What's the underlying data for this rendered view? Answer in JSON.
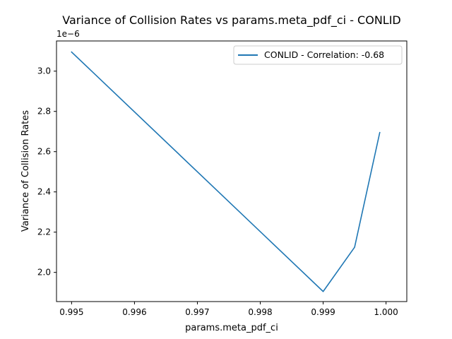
{
  "chart_data": {
    "type": "line",
    "title": "Variance of Collision Rates vs params.meta_pdf_ci - CONLID",
    "xlabel": "params.meta_pdf_ci",
    "ylabel": "Variance of Collision Rates",
    "y_offset_label": "1e−6",
    "x_ticks": [
      "0.995",
      "0.996",
      "0.997",
      "0.998",
      "0.999",
      "1.000"
    ],
    "y_ticks": [
      "2.0",
      "2.2",
      "2.4",
      "2.6",
      "2.8",
      "3.0"
    ],
    "xlim": [
      0.99476,
      1.00033
    ],
    "ylim": [
      1.855e-06,
      3.15e-06
    ],
    "grid": false,
    "legend_position": "top-right",
    "series": [
      {
        "name": "CONLID - Correlation: -0.68",
        "color": "#1f77b4",
        "x": [
          0.995,
          0.999,
          0.9995,
          0.9999
        ],
        "y": [
          3.095e-06,
          1.905e-06,
          2.125e-06,
          2.695e-06
        ]
      }
    ]
  }
}
